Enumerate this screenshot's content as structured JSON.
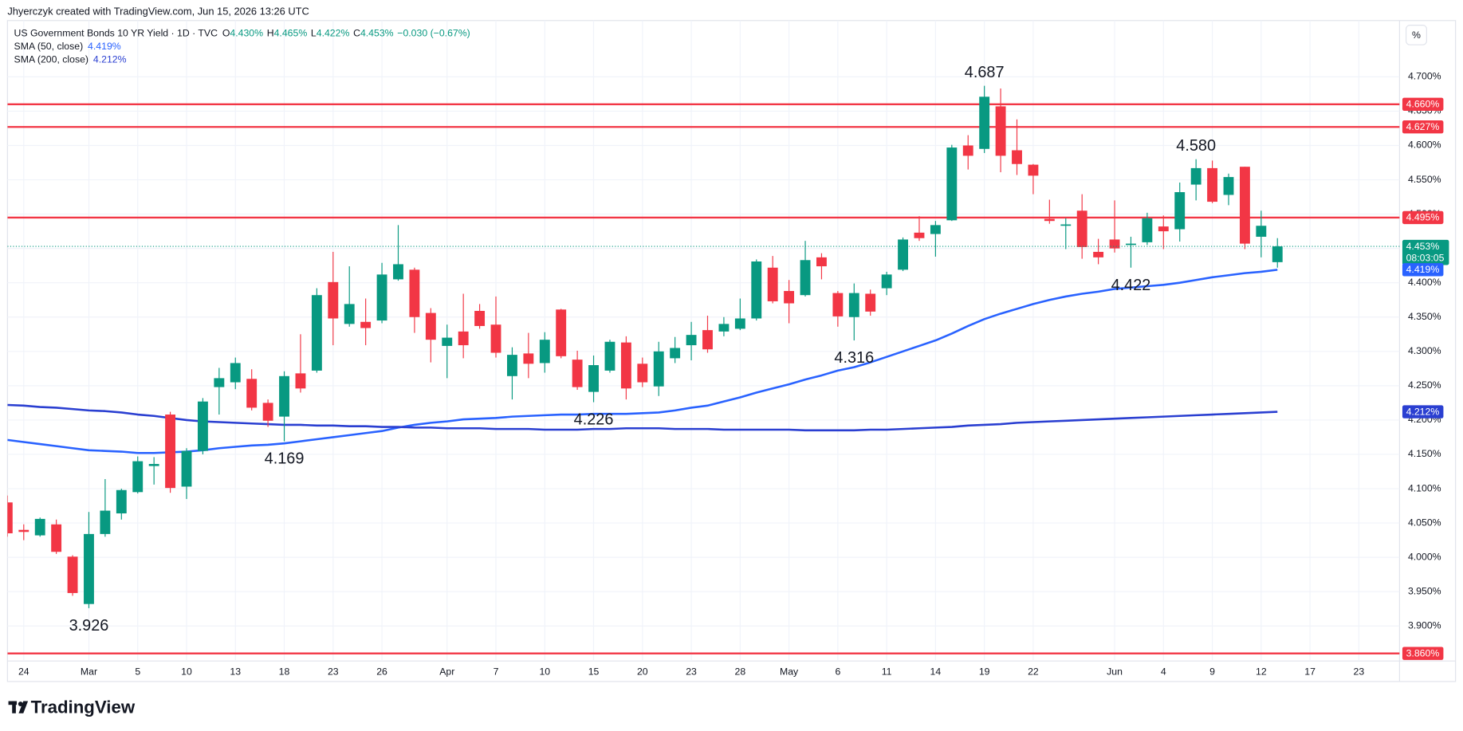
{
  "header": "Jhyerczyk created with TradingView.com, Jun 15, 2026 13:26 UTC",
  "footer_logo": "TradingView",
  "chart_data": {
    "type": "candlestick",
    "title": "US Government Bonds 10 YR Yield · 1D · TVC",
    "ohlc_legend": [
      {
        "key": "O",
        "value": "4.430%"
      },
      {
        "key": "H",
        "value": "4.465%"
      },
      {
        "key": "L",
        "value": "4.422%"
      },
      {
        "key": "C",
        "value": "4.453%"
      }
    ],
    "change": "−0.030 (−0.67%)",
    "scale_button": "%",
    "up_color": "#089981",
    "down_color": "#f23645",
    "open": [
      4.08,
      4.04,
      4.032,
      4.048,
      4.001,
      3.932,
      4.034,
      4.064,
      4.095,
      4.133,
      4.208,
      4.103,
      4.155,
      4.248,
      4.255,
      4.26,
      4.225,
      4.205,
      4.268,
      4.272,
      4.401,
      4.34,
      4.343,
      4.345,
      4.405,
      4.419,
      4.356,
      4.308,
      4.329,
      4.359,
      4.339,
      4.264,
      4.297,
      4.283,
      4.361,
      4.288,
      4.241,
      4.272,
      4.313,
      4.282,
      4.249,
      4.29,
      4.309,
      4.331,
      4.329,
      4.333,
      4.348,
      4.422,
      4.388,
      4.382,
      4.437,
      4.385,
      4.35,
      4.384,
      4.392,
      4.419,
      4.473,
      4.471,
      4.491,
      4.6,
      4.595,
      4.657,
      4.593,
      4.572,
      4.493,
      4.483,
      4.505,
      4.445,
      4.463,
      4.455,
      4.459,
      4.482,
      4.478,
      4.543,
      4.567,
      4.528,
      4.569,
      4.467,
      4.43
    ],
    "high": [
      4.09,
      4.048,
      4.058,
      4.055,
      4.003,
      4.066,
      4.114,
      4.1,
      4.147,
      4.146,
      4.212,
      4.159,
      4.232,
      4.276,
      4.291,
      4.274,
      4.23,
      4.271,
      4.325,
      4.392,
      4.445,
      4.424,
      4.377,
      4.429,
      4.484,
      4.422,
      4.363,
      4.339,
      4.384,
      4.369,
      4.38,
      4.306,
      4.327,
      4.328,
      4.362,
      4.301,
      4.294,
      4.317,
      4.322,
      4.291,
      4.314,
      4.321,
      4.343,
      4.352,
      4.35,
      4.377,
      4.434,
      4.439,
      4.404,
      4.461,
      4.443,
      4.388,
      4.399,
      4.39,
      4.416,
      4.466,
      4.497,
      4.49,
      4.601,
      4.615,
      4.687,
      4.683,
      4.638,
      4.573,
      4.521,
      4.494,
      4.529,
      4.464,
      4.52,
      4.467,
      4.502,
      4.498,
      4.546,
      4.58,
      4.578,
      4.559,
      4.569,
      4.505,
      4.465
    ],
    "low": [
      4.03,
      4.025,
      4.03,
      4.005,
      3.944,
      3.926,
      4.03,
      4.055,
      4.093,
      4.106,
      4.094,
      4.085,
      4.15,
      4.208,
      4.245,
      4.214,
      4.19,
      4.169,
      4.24,
      4.269,
      4.309,
      4.336,
      4.309,
      4.341,
      4.403,
      4.327,
      4.284,
      4.261,
      4.29,
      4.333,
      4.291,
      4.23,
      4.261,
      4.269,
      4.29,
      4.244,
      4.226,
      4.269,
      4.23,
      4.248,
      4.235,
      4.283,
      4.287,
      4.298,
      4.322,
      4.331,
      4.345,
      4.37,
      4.341,
      4.38,
      4.405,
      4.336,
      4.316,
      4.352,
      4.382,
      4.417,
      4.461,
      4.438,
      4.49,
      4.565,
      4.589,
      4.561,
      4.557,
      4.529,
      4.486,
      4.449,
      4.435,
      4.427,
      4.444,
      4.422,
      4.455,
      4.449,
      4.46,
      4.52,
      4.516,
      4.513,
      4.449,
      4.437,
      4.422
    ],
    "close": [
      4.035,
      4.037,
      4.056,
      4.008,
      3.948,
      4.034,
      4.068,
      4.098,
      4.14,
      4.136,
      4.101,
      4.155,
      4.227,
      4.261,
      4.283,
      4.218,
      4.199,
      4.264,
      4.246,
      4.382,
      4.348,
      4.369,
      4.334,
      4.412,
      4.427,
      4.35,
      4.317,
      4.32,
      4.309,
      4.337,
      4.298,
      4.295,
      4.282,
      4.317,
      4.293,
      4.248,
      4.28,
      4.314,
      4.246,
      4.255,
      4.3,
      4.305,
      4.324,
      4.303,
      4.34,
      4.348,
      4.431,
      4.373,
      4.37,
      4.433,
      4.424,
      4.351,
      4.385,
      4.358,
      4.412,
      4.463,
      4.465,
      4.484,
      4.597,
      4.585,
      4.671,
      4.585,
      4.573,
      4.556,
      4.49,
      4.485,
      4.452,
      4.437,
      4.45,
      4.457,
      4.494,
      4.475,
      4.532,
      4.567,
      4.518,
      4.554,
      4.457,
      4.483,
      4.453
    ],
    "indicators": [
      {
        "name": "SMA (50, close)",
        "value_label": "4.419%",
        "color": "#2962ff",
        "values": [
          4.171,
          4.168,
          4.165,
          4.162,
          4.159,
          4.156,
          4.155,
          4.154,
          4.152,
          4.152,
          4.153,
          4.154,
          4.156,
          4.159,
          4.161,
          4.163,
          4.164,
          4.166,
          4.169,
          4.172,
          4.175,
          4.178,
          4.181,
          4.184,
          4.189,
          4.193,
          4.196,
          4.198,
          4.201,
          4.202,
          4.203,
          4.205,
          4.206,
          4.207,
          4.208,
          4.208,
          4.209,
          4.209,
          4.209,
          4.21,
          4.211,
          4.214,
          4.218,
          4.221,
          4.227,
          4.233,
          4.24,
          4.246,
          4.252,
          4.259,
          4.265,
          4.272,
          4.277,
          4.284,
          4.292,
          4.3,
          4.308,
          4.316,
          4.326,
          4.337,
          4.347,
          4.355,
          4.362,
          4.369,
          4.375,
          4.38,
          4.384,
          4.387,
          4.391,
          4.393,
          4.395,
          4.397,
          4.4,
          4.404,
          4.408,
          4.411,
          4.414,
          4.416,
          4.419
        ]
      },
      {
        "name": "SMA (200, close)",
        "value_label": "4.212%",
        "color": "#2a3fd1",
        "values": [
          4.222,
          4.221,
          4.219,
          4.218,
          4.216,
          4.214,
          4.213,
          4.211,
          4.208,
          4.206,
          4.203,
          4.2,
          4.198,
          4.197,
          4.196,
          4.195,
          4.194,
          4.193,
          4.193,
          4.192,
          4.192,
          4.191,
          4.191,
          4.19,
          4.19,
          4.189,
          4.189,
          4.188,
          4.188,
          4.188,
          4.187,
          4.187,
          4.187,
          4.186,
          4.186,
          4.186,
          4.187,
          4.187,
          4.188,
          4.188,
          4.188,
          4.187,
          4.187,
          4.187,
          4.186,
          4.186,
          4.186,
          4.186,
          4.186,
          4.185,
          4.185,
          4.185,
          4.185,
          4.186,
          4.186,
          4.187,
          4.188,
          4.189,
          4.19,
          4.192,
          4.193,
          4.194,
          4.196,
          4.197,
          4.198,
          4.199,
          4.2,
          4.201,
          4.202,
          4.203,
          4.204,
          4.205,
          4.206,
          4.207,
          4.208,
          4.209,
          4.21,
          4.211,
          4.212
        ]
      }
    ],
    "hlines_color": "#f23645",
    "hlines": [
      {
        "value": 4.66,
        "label": "4.660%"
      },
      {
        "value": 4.627,
        "label": "4.627%"
      },
      {
        "value": 4.495,
        "label": "4.495%"
      },
      {
        "value": 3.86,
        "label": "3.860%"
      }
    ],
    "last_price": {
      "value": 4.453,
      "label": "4.453%",
      "countdown": "08:03:05"
    },
    "annotations": [
      {
        "index": 60,
        "value": 4.687,
        "label": "4.687"
      },
      {
        "index": 5,
        "value": 3.926,
        "label": "3.926"
      },
      {
        "index": 17,
        "value": 4.169,
        "label": "4.169"
      },
      {
        "index": 36,
        "value": 4.226,
        "label": "4.226"
      },
      {
        "index": 52,
        "value": 4.316,
        "label": "4.316"
      },
      {
        "index": 69,
        "value": 4.422,
        "label": "4.422"
      },
      {
        "index": 73,
        "value": 4.58,
        "label": "4.580"
      }
    ],
    "xlim": [
      0,
      85.5
    ],
    "ylim": [
      3.849,
      4.782
    ],
    "xticks": [
      {
        "value": 1,
        "label": "24"
      },
      {
        "value": 5,
        "label": "Mar"
      },
      {
        "value": 8,
        "label": "5"
      },
      {
        "value": 11,
        "label": "10"
      },
      {
        "value": 14,
        "label": "13"
      },
      {
        "value": 17,
        "label": "18"
      },
      {
        "value": 20,
        "label": "23"
      },
      {
        "value": 23,
        "label": "26"
      },
      {
        "value": 27,
        "label": "Apr"
      },
      {
        "value": 30,
        "label": "7"
      },
      {
        "value": 33,
        "label": "10"
      },
      {
        "value": 36,
        "label": "15"
      },
      {
        "value": 39,
        "label": "20"
      },
      {
        "value": 42,
        "label": "23"
      },
      {
        "value": 45,
        "label": "28"
      },
      {
        "value": 48,
        "label": "May"
      },
      {
        "value": 51,
        "label": "6"
      },
      {
        "value": 54,
        "label": "11"
      },
      {
        "value": 57,
        "label": "14"
      },
      {
        "value": 60,
        "label": "19"
      },
      {
        "value": 63,
        "label": "22"
      },
      {
        "value": 68,
        "label": "Jun"
      },
      {
        "value": 71,
        "label": "4"
      },
      {
        "value": 74,
        "label": "9"
      },
      {
        "value": 77,
        "label": "12"
      },
      {
        "value": 80,
        "label": "17"
      },
      {
        "value": 83,
        "label": "23"
      }
    ],
    "yticks": [
      {
        "value": 3.9,
        "label": "3.900%"
      },
      {
        "value": 3.95,
        "label": "3.950%"
      },
      {
        "value": 4.0,
        "label": "4.000%"
      },
      {
        "value": 4.05,
        "label": "4.050%"
      },
      {
        "value": 4.1,
        "label": "4.100%"
      },
      {
        "value": 4.15,
        "label": "4.150%"
      },
      {
        "value": 4.2,
        "label": "4.200%"
      },
      {
        "value": 4.25,
        "label": "4.250%"
      },
      {
        "value": 4.3,
        "label": "4.300%"
      },
      {
        "value": 4.35,
        "label": "4.350%"
      },
      {
        "value": 4.4,
        "label": "4.400%"
      },
      {
        "value": 4.45,
        "label": "4.450%"
      },
      {
        "value": 4.5,
        "label": "4.500%"
      },
      {
        "value": 4.55,
        "label": "4.550%"
      },
      {
        "value": 4.6,
        "label": "4.600%"
      },
      {
        "value": 4.65,
        "label": "4.650%"
      },
      {
        "value": 4.7,
        "label": "4.700%"
      }
    ],
    "grid": true
  }
}
